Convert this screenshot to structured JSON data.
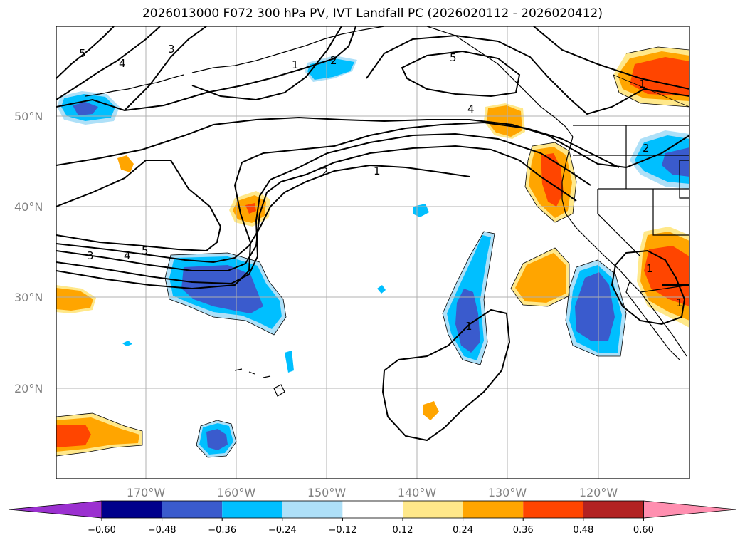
{
  "title": "2026013000 F072 300 hPa PV, IVT Landfall PC (2026020112 - 2026020412)",
  "map": {
    "lat_labels": [
      "50°N",
      "40°N",
      "30°N",
      "20°N"
    ],
    "lon_labels": [
      "170°W",
      "160°W",
      "150°W",
      "140°W",
      "130°W",
      "120°W"
    ],
    "contour_labels": [
      "5",
      "4",
      "3",
      "2",
      "1",
      "1",
      "2",
      "5",
      "4",
      "1",
      "2",
      "1",
      "3",
      "4",
      "5",
      "1",
      "1"
    ]
  },
  "colorbar": {
    "ticks": [
      "−0.60",
      "−0.48",
      "−0.36",
      "−0.24",
      "−0.12",
      "0.12",
      "0.24",
      "0.36",
      "0.48",
      "0.60"
    ],
    "colors": [
      "#9b30d0",
      "#00008b",
      "#3a5bcd",
      "#00bfff",
      "#aee0f8",
      "#ffffff",
      "#ffe88a",
      "#ffa500",
      "#ff4500",
      "#b22222",
      "#ff8fb0"
    ]
  }
}
